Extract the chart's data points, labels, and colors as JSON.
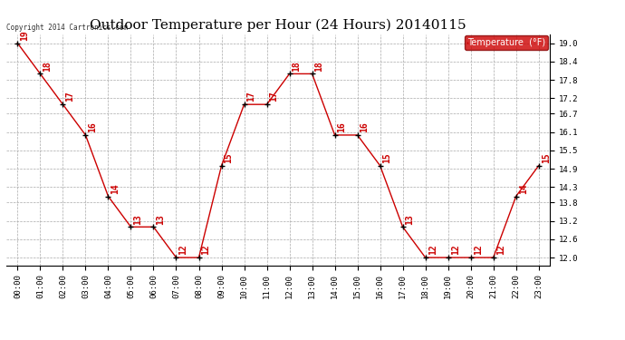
{
  "title": "Outdoor Temperature per Hour (24 Hours) 20140115",
  "copyright_text": "Copyright 2014 Cartronics.com",
  "legend_label": "Temperature  (°F)",
  "hours": [
    "00:00",
    "01:00",
    "02:00",
    "03:00",
    "04:00",
    "05:00",
    "06:00",
    "07:00",
    "08:00",
    "09:00",
    "10:00",
    "11:00",
    "12:00",
    "13:00",
    "14:00",
    "15:00",
    "16:00",
    "17:00",
    "18:00",
    "19:00",
    "20:00",
    "21:00",
    "22:00",
    "23:00"
  ],
  "temperatures": [
    19,
    18,
    17,
    16,
    14,
    13,
    13,
    12,
    12,
    15,
    17,
    17,
    18,
    18,
    16,
    16,
    15,
    13,
    12,
    12,
    12,
    12,
    14,
    15
  ],
  "ylim_min": 11.75,
  "ylim_max": 19.3,
  "yticks": [
    12.0,
    12.6,
    13.2,
    13.8,
    14.3,
    14.9,
    15.5,
    16.1,
    16.7,
    17.2,
    17.8,
    18.4,
    19.0
  ],
  "ytick_labels": [
    "12.0",
    "12.6",
    "13.2",
    "13.8",
    "14.3",
    "14.9",
    "15.5",
    "16.1",
    "16.7",
    "17.2",
    "17.8",
    "18.4",
    "19.0"
  ],
  "line_color": "#cc0000",
  "marker_color": "#000000",
  "label_color": "#cc0000",
  "bg_color": "#ffffff",
  "grid_color": "#aaaaaa",
  "title_fontsize": 11,
  "label_fontsize": 7,
  "tick_fontsize": 6.5,
  "copyright_fontsize": 5.5,
  "legend_bg": "#cc0000",
  "legend_text_color": "#ffffff",
  "legend_fontsize": 7
}
